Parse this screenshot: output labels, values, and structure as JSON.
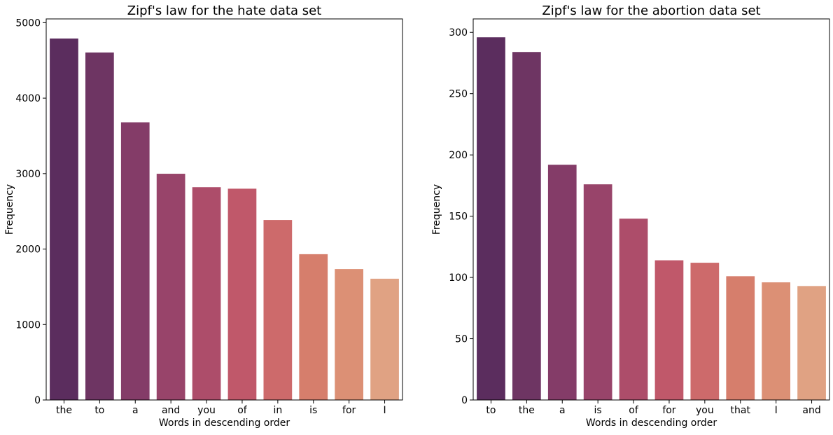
{
  "chart_data": [
    {
      "type": "bar",
      "title": "Zipf's law for the hate data set",
      "xlabel": "Words in descending order",
      "ylabel": "Frequency",
      "categories": [
        "the",
        "to",
        "a",
        "and",
        "you",
        "of",
        "in",
        "is",
        "for",
        "I"
      ],
      "values": [
        4790,
        4605,
        3680,
        2998,
        2820,
        2800,
        2385,
        1932,
        1735,
        1607
      ],
      "ylim": [
        0,
        5050
      ],
      "yticks": [
        0,
        1000,
        2000,
        3000,
        4000,
        5000
      ],
      "grid": false,
      "colors": [
        "#5b2d5e",
        "#6e3563",
        "#843c68",
        "#98446a",
        "#ad4d6a",
        "#c0586a",
        "#cd6a6b",
        "#d67e6c",
        "#dc9075",
        "#e0a283"
      ]
    },
    {
      "type": "bar",
      "title": "Zipf's law for the abortion data set",
      "xlabel": "Words in descending order",
      "ylabel": "Frequency",
      "categories": [
        "to",
        "the",
        "a",
        "is",
        "of",
        "for",
        "you",
        "that",
        "I",
        "and"
      ],
      "values": [
        296,
        284,
        192,
        176,
        148,
        114,
        112,
        101,
        96,
        93
      ],
      "ylim": [
        0,
        311
      ],
      "yticks": [
        0,
        50,
        100,
        150,
        200,
        250,
        300
      ],
      "grid": false,
      "colors": [
        "#5b2d5e",
        "#6e3563",
        "#843c68",
        "#98446a",
        "#ad4d6a",
        "#c0586a",
        "#cd6a6b",
        "#d67e6c",
        "#dc9075",
        "#e0a283"
      ]
    }
  ]
}
